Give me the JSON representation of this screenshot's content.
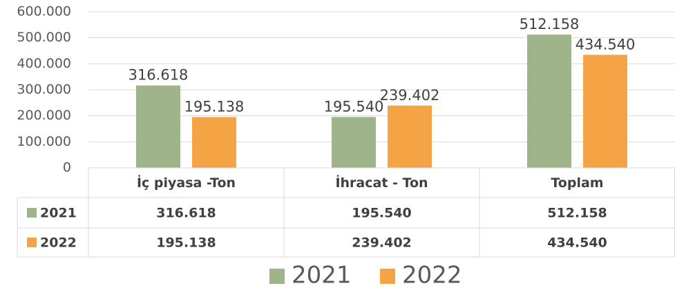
{
  "chart_data": {
    "type": "bar",
    "categories": [
      "İç piyasa -Ton",
      "İhracat - Ton",
      "Toplam"
    ],
    "series": [
      {
        "name": "2021",
        "color": "#9fb48a",
        "values": [
          316618,
          195540,
          512158
        ],
        "value_labels": [
          "316.618",
          "195.540",
          "512.158"
        ]
      },
      {
        "name": "2022",
        "color": "#f4a445",
        "values": [
          195138,
          239402,
          434540
        ],
        "value_labels": [
          "195.138",
          "239.402",
          "434.540"
        ]
      }
    ],
    "ylim": [
      0,
      600000
    ],
    "yticks": [
      0,
      {
        "value": 100000,
        "label": "100.000"
      },
      {
        "value": 200000,
        "label": "200.000"
      },
      {
        "value": 300000,
        "label": "300.000"
      },
      {
        "value": 400000,
        "label": "400.000"
      },
      {
        "value": 500000,
        "label": "500.000"
      },
      {
        "value": 600000,
        "label": "600.000"
      }
    ],
    "grid": true,
    "data_table": true,
    "legend": "bottom"
  }
}
